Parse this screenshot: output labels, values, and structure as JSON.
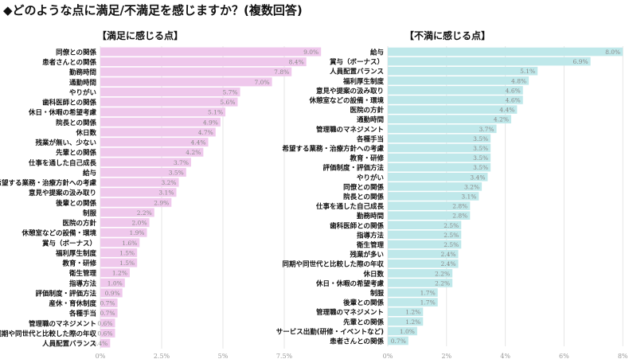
{
  "title": "◆どのような点に満足/不満足を感じますか？(複数回答)",
  "chart_data": [
    {
      "type": "bar",
      "orientation": "horizontal",
      "title": "【満足に感じる点】",
      "color": "#efc8ec",
      "xlim": [
        0,
        9
      ],
      "ticks": [
        "0%",
        "2.5%",
        "5%",
        "7.5%"
      ],
      "tick_values": [
        0,
        2.5,
        5,
        7.5
      ],
      "grid": true,
      "categories": [
        "同僚との関係",
        "患者さんとの関係",
        "勤務時間",
        "通勤時間",
        "やりがい",
        "歯科医師との関係",
        "休日・休暇の希望考慮",
        "院長との関係",
        "休日数",
        "残業が無い、少ない",
        "先輩との関係",
        "仕事を通した自己成長",
        "給与",
        "希望する業務・治療方針への考慮",
        "意見や提案の汲み取り",
        "後輩との関係",
        "制服",
        "医院の方針",
        "休憩室などの設備・環境",
        "賞与（ボーナス）",
        "福利厚生制度",
        "教育・研修",
        "衛生管理",
        "指導方法",
        "評価制度・評価方法",
        "産休・育休制度",
        "各種手当",
        "管理職のマネジメント",
        "同期や同世代と比較した際の年収",
        "人員配置バランス"
      ],
      "values": [
        9.0,
        8.4,
        7.8,
        7.0,
        5.7,
        5.6,
        5.1,
        4.9,
        4.7,
        4.4,
        4.2,
        3.7,
        3.5,
        3.2,
        3.1,
        2.9,
        2.2,
        2.0,
        1.9,
        1.6,
        1.5,
        1.5,
        1.2,
        1.0,
        0.9,
        0.7,
        0.7,
        0.6,
        0.6,
        0.4
      ],
      "value_labels": [
        "9.0%",
        "8.4%",
        "7.8%",
        "7.0%",
        "5.7%",
        "5.6%",
        "5.1%",
        "4.9%",
        "4.7%",
        "4.4%",
        "4.2%",
        "3.7%",
        "3.5%",
        "3.2%",
        "3.1%",
        "2.9%",
        "2.2%",
        "2.0%",
        "1.9%",
        "1.6%",
        "1.5%",
        "1.5%",
        "1.2%",
        "1.0%",
        "0.9%",
        "0.7%",
        "0.7%",
        "0.6%",
        "0.6%",
        "0.4%"
      ]
    },
    {
      "type": "bar",
      "orientation": "horizontal",
      "title": "【不満に感じる点】",
      "color": "#bfe8ea",
      "xlim": [
        0,
        8
      ],
      "ticks": [
        "0%",
        "2%",
        "4%",
        "6%",
        "8%"
      ],
      "tick_values": [
        0,
        2,
        4,
        6,
        8
      ],
      "grid": true,
      "categories": [
        "給与",
        "賞与（ボーナス）",
        "人員配置バランス",
        "福利厚生制度",
        "意見や提案の汲み取り",
        "休憩室などの設備・環境",
        "医院の方針",
        "通勤時間",
        "管理職のマネジメント",
        "各種手当",
        "希望する業務・治療方針への考慮",
        "教育・研修",
        "評価制度・評価方法",
        "やりがい",
        "同僚との関係",
        "院長との関係",
        "仕事を通した自己成長",
        "勤務時間",
        "歯科医師との関係",
        "指導方法",
        "衛生管理",
        "残業が多い",
        "同期や同世代と比較した際の年収",
        "休日数",
        "休日・休暇の希望考慮",
        "制服",
        "後輩との関係",
        "管理職のマネジメント",
        "先輩との関係",
        "サービス出勤(研修・イベントなど)",
        "患者さんとの関係"
      ],
      "values": [
        8.0,
        6.9,
        5.1,
        4.8,
        4.6,
        4.6,
        4.4,
        4.2,
        3.7,
        3.5,
        3.5,
        3.5,
        3.5,
        3.4,
        3.2,
        3.1,
        2.8,
        2.8,
        2.5,
        2.5,
        2.5,
        2.4,
        2.4,
        2.2,
        2.2,
        1.7,
        1.7,
        1.2,
        1.2,
        1.0,
        0.7
      ],
      "value_labels": [
        "8.0%",
        "6.9%",
        "5.1%",
        "4.8%",
        "4.6%",
        "4.6%",
        "4.4%",
        "4.2%",
        "3.7%",
        "3.5%",
        "3.5%",
        "3.5%",
        "3.5%",
        "3.4%",
        "3.2%",
        "3.1%",
        "2.8%",
        "2.8%",
        "2.5%",
        "2.5%",
        "2.5%",
        "2.4%",
        "2.4%",
        "2.2%",
        "2.2%",
        "1.7%",
        "1.7%",
        "1.2%",
        "1.2%",
        "1.0%",
        "0.7%"
      ]
    }
  ]
}
